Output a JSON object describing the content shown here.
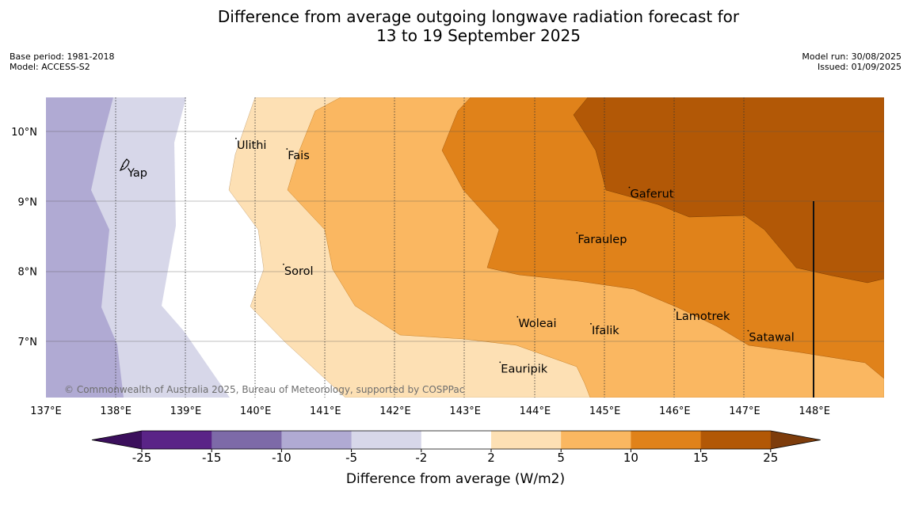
{
  "title": {
    "line1": "Difference from average outgoing longwave radiation forecast for",
    "line2": "13 to 19 September 2025"
  },
  "meta": {
    "base_period": "Base period: 1981-2018",
    "model": "Model: ACCESS-S2",
    "model_run": "Model run: 30/08/2025",
    "issued": "Issued: 01/09/2025"
  },
  "map": {
    "copyright": "© Commonwealth of Australia 2025, Bureau of Meteorology, supported by COSPPac",
    "lon_ticks": [
      "137°E",
      "138°E",
      "139°E",
      "140°E",
      "141°E",
      "142°E",
      "143°E",
      "144°E",
      "145°E",
      "146°E",
      "147°E",
      "148°E"
    ],
    "lat_ticks": [
      "10°N",
      "9°N",
      "8°N",
      "7°N"
    ],
    "places": [
      {
        "name": "Ulithi",
        "lon": 139.72,
        "lat": 9.9
      },
      {
        "name": "Fais",
        "lon": 140.45,
        "lat": 9.75
      },
      {
        "name": "Yap",
        "lon": 138.1,
        "lat": 9.5
      },
      {
        "name": "Gaferut",
        "lon": 145.35,
        "lat": 9.2
      },
      {
        "name": "Faraulep",
        "lon": 144.6,
        "lat": 8.55
      },
      {
        "name": "Sorol",
        "lon": 140.4,
        "lat": 8.1
      },
      {
        "name": "Lamotrek",
        "lon": 146.0,
        "lat": 7.45
      },
      {
        "name": "Woleai",
        "lon": 143.75,
        "lat": 7.35
      },
      {
        "name": "Ifalik",
        "lon": 144.8,
        "lat": 7.25
      },
      {
        "name": "Satawal",
        "lon": 147.05,
        "lat": 7.15
      },
      {
        "name": "Eauripik",
        "lon": 143.5,
        "lat": 6.7
      }
    ]
  },
  "colorbar": {
    "title": "Difference from average (W/m2)",
    "ticks": [
      "-25",
      "-15",
      "-10",
      "-5",
      "-2",
      "2",
      "5",
      "10",
      "15",
      "25"
    ],
    "colors": {
      "below_-25": "#3b0f5c",
      "-25_-15": "#5a2487",
      "-15_-10": "#7d6aa8",
      "-10_-5": "#b0aad3",
      "-5_-2": "#d7d7e9",
      "-2_2": "#ffffff",
      "2_5": "#fde0b4",
      "5_10": "#fab761",
      "10_15": "#e0821a",
      "15_25": "#b25806",
      "above_25": "#7d3c0b"
    }
  }
}
